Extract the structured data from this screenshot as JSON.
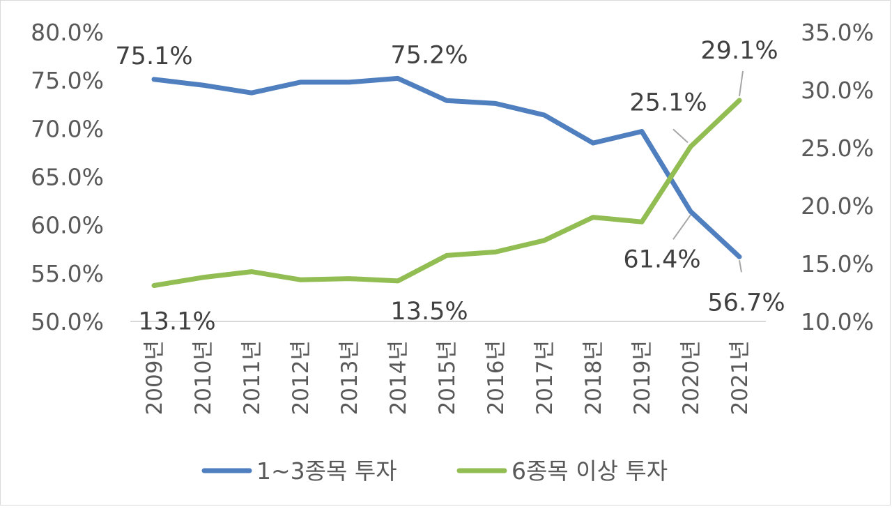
{
  "chart_data": {
    "type": "line",
    "title": "",
    "categories": [
      "2009년",
      "2010년",
      "2011년",
      "2012년",
      "2013년",
      "2014년",
      "2015년",
      "2016년",
      "2017년",
      "2018년",
      "2019년",
      "2020년",
      "2021년"
    ],
    "y_left": {
      "min": 0.5,
      "max": 0.8,
      "step": 0.05,
      "ticks": [
        "50.0%",
        "55.0%",
        "60.0%",
        "65.0%",
        "70.0%",
        "75.0%",
        "80.0%"
      ]
    },
    "y_right": {
      "min": 0.1,
      "max": 0.35,
      "step": 0.05,
      "ticks": [
        "10.0%",
        "15.0%",
        "20.0%",
        "25.0%",
        "30.0%",
        "35.0%"
      ]
    },
    "series": [
      {
        "name": "1~3종목 투자",
        "axis": "left",
        "color": "#4f7fbf",
        "values": [
          0.751,
          0.745,
          0.737,
          0.748,
          0.748,
          0.752,
          0.729,
          0.726,
          0.714,
          0.685,
          0.697,
          0.614,
          0.567
        ]
      },
      {
        "name": "6종목 이상 투자",
        "axis": "right",
        "color": "#92bd52",
        "values": [
          0.131,
          0.138,
          0.143,
          0.136,
          0.137,
          0.135,
          0.157,
          0.16,
          0.17,
          0.19,
          0.186,
          0.251,
          0.291
        ]
      }
    ],
    "data_labels": [
      {
        "series": 0,
        "index": 0,
        "text": "75.1%"
      },
      {
        "series": 0,
        "index": 5,
        "text": "75.2%"
      },
      {
        "series": 0,
        "index": 11,
        "text": "61.4%"
      },
      {
        "series": 0,
        "index": 12,
        "text": "56.7%"
      },
      {
        "series": 1,
        "index": 0,
        "text": "13.1%"
      },
      {
        "series": 1,
        "index": 5,
        "text": "13.5%"
      },
      {
        "series": 1,
        "index": 11,
        "text": "25.1%"
      },
      {
        "series": 1,
        "index": 12,
        "text": "29.1%"
      }
    ],
    "grid": false,
    "legend": "bottom"
  },
  "legend": {
    "items": [
      {
        "label": "1~3종목 투자",
        "color": "#4f7fbf"
      },
      {
        "label": "6종목 이상 투자",
        "color": "#92bd52"
      }
    ]
  }
}
